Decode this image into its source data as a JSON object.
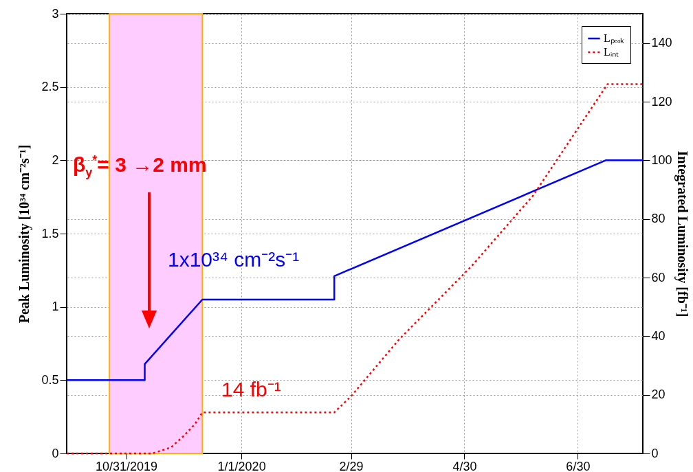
{
  "chart_data": {
    "type": "line",
    "ylabel": "Peak Luminosity [10³⁴ cm⁻²s⁻¹]",
    "y2label": "Integrated Luminosity [fb⁻¹]",
    "xlim": [
      "2019-09-29",
      "2020-08-04"
    ],
    "xticks": [
      {
        "value": "2019-10-31",
        "label": "10/31/2019"
      },
      {
        "value": "2020-01-01",
        "label": "1/1/2020"
      },
      {
        "value": "2020-02-29",
        "label": "2/29"
      },
      {
        "value": "2020-04-30",
        "label": "4/30"
      },
      {
        "value": "2020-06-30",
        "label": "6/30"
      }
    ],
    "ylim": [
      0,
      3
    ],
    "yticks": [
      0,
      0.5,
      1,
      1.5,
      2,
      2.5,
      3
    ],
    "y2lim": [
      0,
      150
    ],
    "y2ticks": [
      0,
      20,
      40,
      60,
      80,
      100,
      120,
      140
    ],
    "series": [
      {
        "name": "Lₚₑₐₖ",
        "color": "#0000ff",
        "line_style": "solid",
        "x": [
          "2019-09-29",
          "2019-11-10",
          "2019-11-10",
          "2019-12-11",
          "2020-02-20",
          "2020-02-20",
          "2020-07-15",
          "2020-08-04"
        ],
        "values": [
          0.5,
          0.5,
          0.61,
          1.05,
          1.05,
          1.21,
          2.0,
          2.0
        ]
      },
      {
        "name": "Lᵢₙₜ",
        "axis": "y2",
        "color": "#ff0000",
        "line_style": "dotted",
        "x": [
          "2019-09-29",
          "2019-11-14",
          "2019-11-24",
          "2019-12-01",
          "2019-12-07",
          "2019-12-11",
          "2020-02-20",
          "2020-02-29",
          "2020-03-26",
          "2020-05-04",
          "2020-06-06",
          "2020-07-16",
          "2020-08-04"
        ],
        "values": [
          0,
          0,
          2,
          6,
          10,
          14,
          14,
          19.5,
          39,
          64,
          88,
          126,
          126
        ]
      }
    ],
    "bands": [
      {
        "axis": "x",
        "from": "2019-10-22",
        "to": "2019-12-11",
        "color": "#ffccff"
      }
    ],
    "annotations": [
      "β$_{y}$$^{*}$= 3 →2 mm",
      "1x10³⁴ cm⁻²s⁻¹",
      "14 fb⁻¹"
    ],
    "grid": true,
    "legend": "top right"
  }
}
